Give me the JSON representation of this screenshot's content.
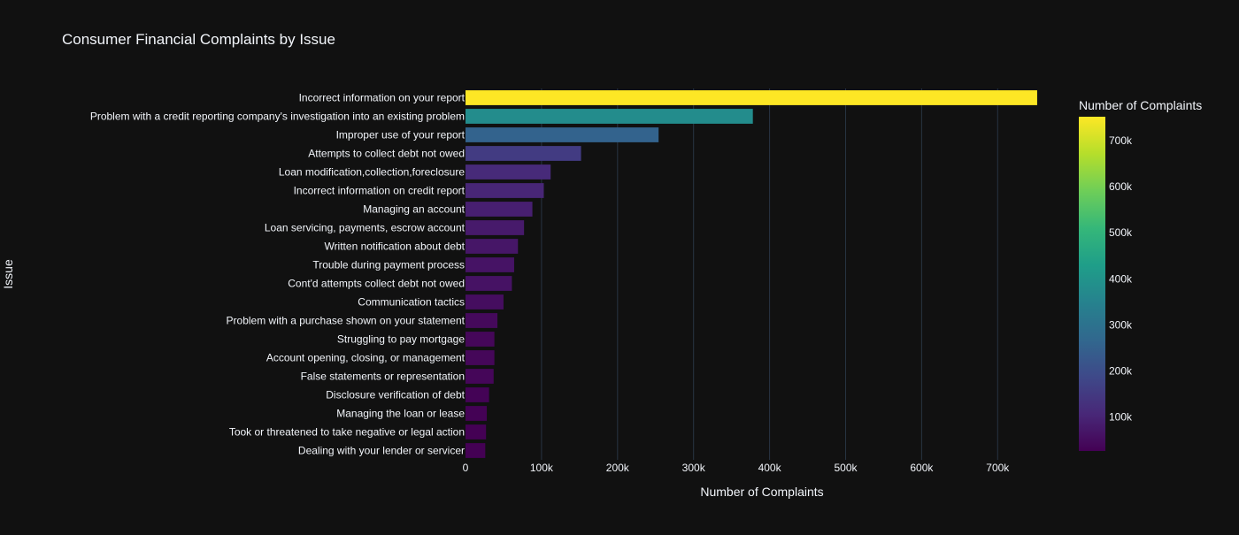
{
  "chart_data": {
    "type": "bar",
    "orientation": "horizontal",
    "title": "Consumer Financial Complaints by Issue",
    "xlabel": "Number of Complaints",
    "ylabel": "Issue",
    "xlim": [
      0,
      780000
    ],
    "x_ticks": [
      {
        "value": 0,
        "label": "0"
      },
      {
        "value": 100000,
        "label": "100k"
      },
      {
        "value": 200000,
        "label": "200k"
      },
      {
        "value": 300000,
        "label": "300k"
      },
      {
        "value": 400000,
        "label": "400k"
      },
      {
        "value": 500000,
        "label": "500k"
      },
      {
        "value": 600000,
        "label": "600k"
      },
      {
        "value": 700000,
        "label": "700k"
      }
    ],
    "categories": [
      "Incorrect information on your report",
      "Problem with a credit reporting company's investigation into an existing problem",
      "Improper use of your report",
      "Attempts to collect debt not owed",
      "Loan modification,collection,foreclosure",
      "Incorrect information on credit report",
      "Managing an account",
      "Loan servicing, payments, escrow account",
      "Written notification about debt",
      "Trouble during payment process",
      "Cont'd attempts collect debt not owed",
      "Communication tactics",
      "Problem with a purchase shown on your statement",
      "Struggling to pay mortgage",
      "Account opening, closing, or management",
      "False statements or representation",
      "Disclosure verification of debt",
      "Managing the loan or lease",
      "Took or threatened to take negative or legal action",
      "Dealing with your lender or servicer"
    ],
    "values": [
      752000,
      378000,
      254000,
      152000,
      112000,
      103000,
      88000,
      77000,
      69000,
      64000,
      61000,
      50000,
      42000,
      38000,
      38000,
      37000,
      31000,
      28000,
      27000,
      26000
    ],
    "colorbar": {
      "title": "Number of Complaints",
      "colorscale": "Viridis",
      "cmin": 26000,
      "cmax": 752000,
      "ticks": [
        {
          "value": 100000,
          "label": "100k"
        },
        {
          "value": 200000,
          "label": "200k"
        },
        {
          "value": 300000,
          "label": "300k"
        },
        {
          "value": 400000,
          "label": "400k"
        },
        {
          "value": 500000,
          "label": "500k"
        },
        {
          "value": 600000,
          "label": "600k"
        },
        {
          "value": 700000,
          "label": "700k"
        }
      ]
    },
    "grid": true,
    "colors": {
      "background": "#111111",
      "text": "#f2f5fa",
      "grid": "#283442"
    }
  }
}
